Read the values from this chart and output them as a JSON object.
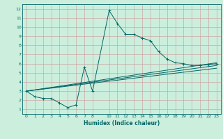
{
  "xlabel": "Humidex (Indice chaleur)",
  "ylabel": "",
  "bg_color": "#cceedd",
  "line_color": "#006666",
  "grid_color": "#cc9999",
  "xlim": [
    -0.5,
    23.5
  ],
  "ylim": [
    0.5,
    12.5
  ],
  "xticks": [
    0,
    1,
    2,
    3,
    4,
    5,
    6,
    7,
    8,
    10,
    11,
    12,
    13,
    14,
    15,
    16,
    17,
    18,
    19,
    20,
    21,
    22,
    23
  ],
  "yticks": [
    1,
    2,
    3,
    4,
    5,
    6,
    7,
    8,
    9,
    10,
    11,
    12
  ],
  "main_series": {
    "x": [
      0,
      1,
      2,
      3,
      4,
      5,
      6,
      7,
      8,
      10,
      11,
      12,
      13,
      14,
      15,
      16,
      17,
      18,
      19,
      20,
      21,
      22,
      23
    ],
    "y": [
      3,
      2.4,
      2.2,
      2.2,
      1.7,
      1.2,
      1.5,
      5.6,
      3.0,
      11.8,
      10.4,
      9.2,
      9.2,
      8.8,
      8.5,
      7.3,
      6.5,
      6.1,
      6.0,
      5.8,
      5.8,
      5.9,
      6.0
    ]
  },
  "straight_lines": [
    {
      "x": [
        0,
        23
      ],
      "y": [
        3.0,
        6.1
      ]
    },
    {
      "x": [
        0,
        23
      ],
      "y": [
        3.0,
        5.8
      ]
    },
    {
      "x": [
        0,
        23
      ],
      "y": [
        3.0,
        5.5
      ]
    }
  ]
}
